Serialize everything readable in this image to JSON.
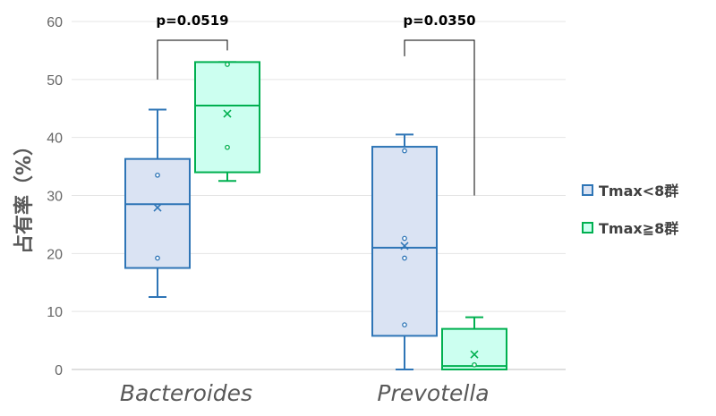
{
  "chart_data": {
    "type": "box",
    "y_axis": {
      "label": "占有率（%）",
      "min": 0,
      "max": 60,
      "ticks": [
        "0",
        "10",
        "20",
        "30",
        "40",
        "50",
        "60"
      ]
    },
    "categories": [
      "Bacteroides",
      "Prevotella"
    ],
    "series": [
      {
        "name": "Tmax<8群",
        "color": "#2e75b6",
        "fill": "#dae3f3",
        "boxes": [
          {
            "category": "Bacteroides",
            "whisker_low": 12.5,
            "q1": 17.5,
            "median": 28.5,
            "q3": 36.3,
            "whisker_high": 44.8,
            "mean": 27.9,
            "points": [
              19.2,
              33.5
            ]
          },
          {
            "category": "Prevotella",
            "whisker_low": 0,
            "q1": 5.8,
            "median": 21.0,
            "q3": 38.4,
            "whisker_high": 40.5,
            "mean": 21.3,
            "points": [
              7.7,
              19.2,
              22.6,
              37.7
            ]
          }
        ]
      },
      {
        "name": "Tmax≧8群",
        "color": "#00b050",
        "fill": "#ccfff0",
        "boxes": [
          {
            "category": "Bacteroides",
            "whisker_low": 32.5,
            "q1": 34.0,
            "median": 45.5,
            "q3": 53.0,
            "whisker_high": 53.0,
            "mean": 44.1,
            "points": [
              38.3,
              52.6
            ]
          },
          {
            "category": "Prevotella",
            "whisker_low": 0,
            "q1": 0,
            "median": 0.6,
            "q3": 7.0,
            "whisker_high": 9.0,
            "mean": 2.6,
            "points": [
              0.8
            ]
          }
        ]
      }
    ],
    "annotations": [
      {
        "category": "Bacteroides",
        "text": "p=0.0519"
      },
      {
        "category": "Prevotella",
        "text": "p=0.0350"
      }
    ],
    "legend": {
      "position": "right"
    }
  }
}
